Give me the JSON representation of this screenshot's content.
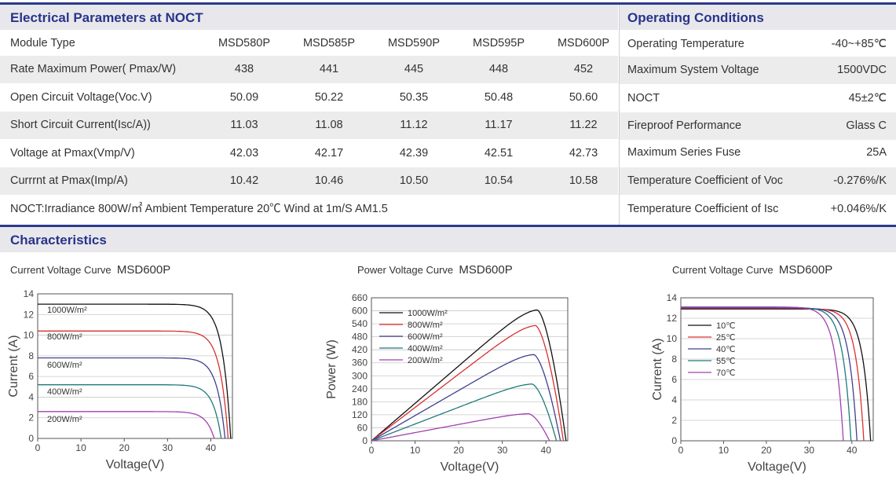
{
  "electrical": {
    "title": "Electrical Parameters at NOCT",
    "header_label": "Module Type",
    "models": [
      "MSD580P",
      "MSD585P",
      "MSD590P",
      "MSD595P",
      "MSD600P"
    ],
    "rows": [
      {
        "label": "Rate Maximum Power( Pmax/W)",
        "values": [
          "438",
          "441",
          "445",
          "448",
          "452"
        ]
      },
      {
        "label": "Open Circuit Voltage(Voc.V)",
        "values": [
          "50.09",
          "50.22",
          "50.35",
          "50.48",
          "50.60"
        ]
      },
      {
        "label": "Short Circuit Current(Isc/A))",
        "values": [
          "11.03",
          "11.08",
          "11.12",
          "11.17",
          "11.22"
        ]
      },
      {
        "label": "Voltage at Pmax(Vmp/V)",
        "values": [
          "42.03",
          "42.17",
          "42.39",
          "42.51",
          "42.73"
        ]
      },
      {
        "label": "Currrnt at Pmax(Imp/A)",
        "values": [
          "10.42",
          "10.46",
          "10.50",
          "10.54",
          "10.58"
        ]
      }
    ],
    "note": "NOCT:Irradiance 800W/㎡  Ambient Temperature 20℃  Wind at 1m/S  AM1.5"
  },
  "operating": {
    "title": "Operating Conditions",
    "rows": [
      {
        "label": "Operating Temperature",
        "value": "-40~+85℃"
      },
      {
        "label": "Maximum System Voltage",
        "value": "1500VDC"
      },
      {
        "label": "NOCT",
        "value": "45±2℃"
      },
      {
        "label": "Fireproof  Performance",
        "value": "Glass C"
      },
      {
        "label": "Maximum Series Fuse",
        "value": "25A"
      },
      {
        "label": "Temperature Coefficient of Voc",
        "value": "-0.276%/K"
      },
      {
        "label": "Temperature Coefficient of Isc",
        "value": "+0.046%/K"
      }
    ]
  },
  "characteristics": {
    "title": "Characteristics"
  },
  "colors": {
    "accent": "#2c3a8c",
    "title": "#28348a",
    "row_alt": "#ececec"
  },
  "chart_data": [
    {
      "type": "line",
      "title_prefix": "Current Voltage Curve",
      "title_model": "MSD600P",
      "xlabel": "Voltage(V)",
      "ylabel": "Current (A)",
      "xlim": [
        0,
        45
      ],
      "ylim": [
        0,
        14
      ],
      "xticks": [
        0,
        10,
        20,
        30,
        40
      ],
      "yticks": [
        0,
        2,
        4,
        6,
        8,
        10,
        12,
        14
      ],
      "series": [
        {
          "name": "1000W/m²",
          "color": "#111111",
          "isc": 13.0,
          "voc": 44.6
        },
        {
          "name": "800W/m²",
          "color": "#d93030",
          "isc": 10.4,
          "voc": 44.0
        },
        {
          "name": "600W/m²",
          "color": "#404090",
          "isc": 7.8,
          "voc": 43.3
        },
        {
          "name": "400W/m²",
          "color": "#1f7a7a",
          "isc": 5.2,
          "voc": 42.4
        },
        {
          "name": "200W/m²",
          "color": "#a040b0",
          "isc": 2.6,
          "voc": 40.8
        }
      ]
    },
    {
      "type": "line",
      "title_prefix": "Power Voltage Curve",
      "title_model": "MSD600P",
      "xlabel": "Voltage(V)",
      "ylabel": "Power (W)",
      "xlim": [
        0,
        45
      ],
      "ylim": [
        0,
        660
      ],
      "xticks": [
        0,
        10,
        20,
        30,
        40
      ],
      "yticks": [
        0,
        60,
        120,
        180,
        240,
        300,
        360,
        420,
        480,
        540,
        600,
        660
      ],
      "series": [
        {
          "name": "1000W/m²",
          "color": "#111111",
          "pmax": 604,
          "vmp": 38,
          "voc": 44.6
        },
        {
          "name": "800W/m²",
          "color": "#d93030",
          "pmax": 532,
          "vmp": 37.6,
          "voc": 44.0
        },
        {
          "name": "600W/m²",
          "color": "#404090",
          "pmax": 398,
          "vmp": 37.2,
          "voc": 43.3
        },
        {
          "name": "400W/m²",
          "color": "#1f7a7a",
          "pmax": 262,
          "vmp": 36.8,
          "voc": 42.4
        },
        {
          "name": "200W/m²",
          "color": "#a040b0",
          "pmax": 125,
          "vmp": 36.0,
          "voc": 40.8
        }
      ]
    },
    {
      "type": "line",
      "title_prefix": "Current Voltage Curve",
      "title_model": "MSD600P",
      "xlabel": "Voltage(V)",
      "ylabel": "Current (A)",
      "xlim": [
        0,
        45
      ],
      "ylim": [
        0,
        14
      ],
      "xticks": [
        0,
        10,
        20,
        30,
        40
      ],
      "yticks": [
        0,
        2,
        4,
        6,
        8,
        10,
        12,
        14
      ],
      "series": [
        {
          "name": "10℃",
          "color": "#111111",
          "isc": 12.9,
          "voc": 44.4
        },
        {
          "name": "25℃",
          "color": "#d93030",
          "isc": 12.95,
          "voc": 42.8
        },
        {
          "name": "40℃",
          "color": "#404090",
          "isc": 13.0,
          "voc": 41.2
        },
        {
          "name": "55℃",
          "color": "#1f7a7a",
          "isc": 13.05,
          "voc": 39.8
        },
        {
          "name": "70℃",
          "color": "#a040b0",
          "isc": 13.1,
          "voc": 38.0
        }
      ]
    }
  ]
}
